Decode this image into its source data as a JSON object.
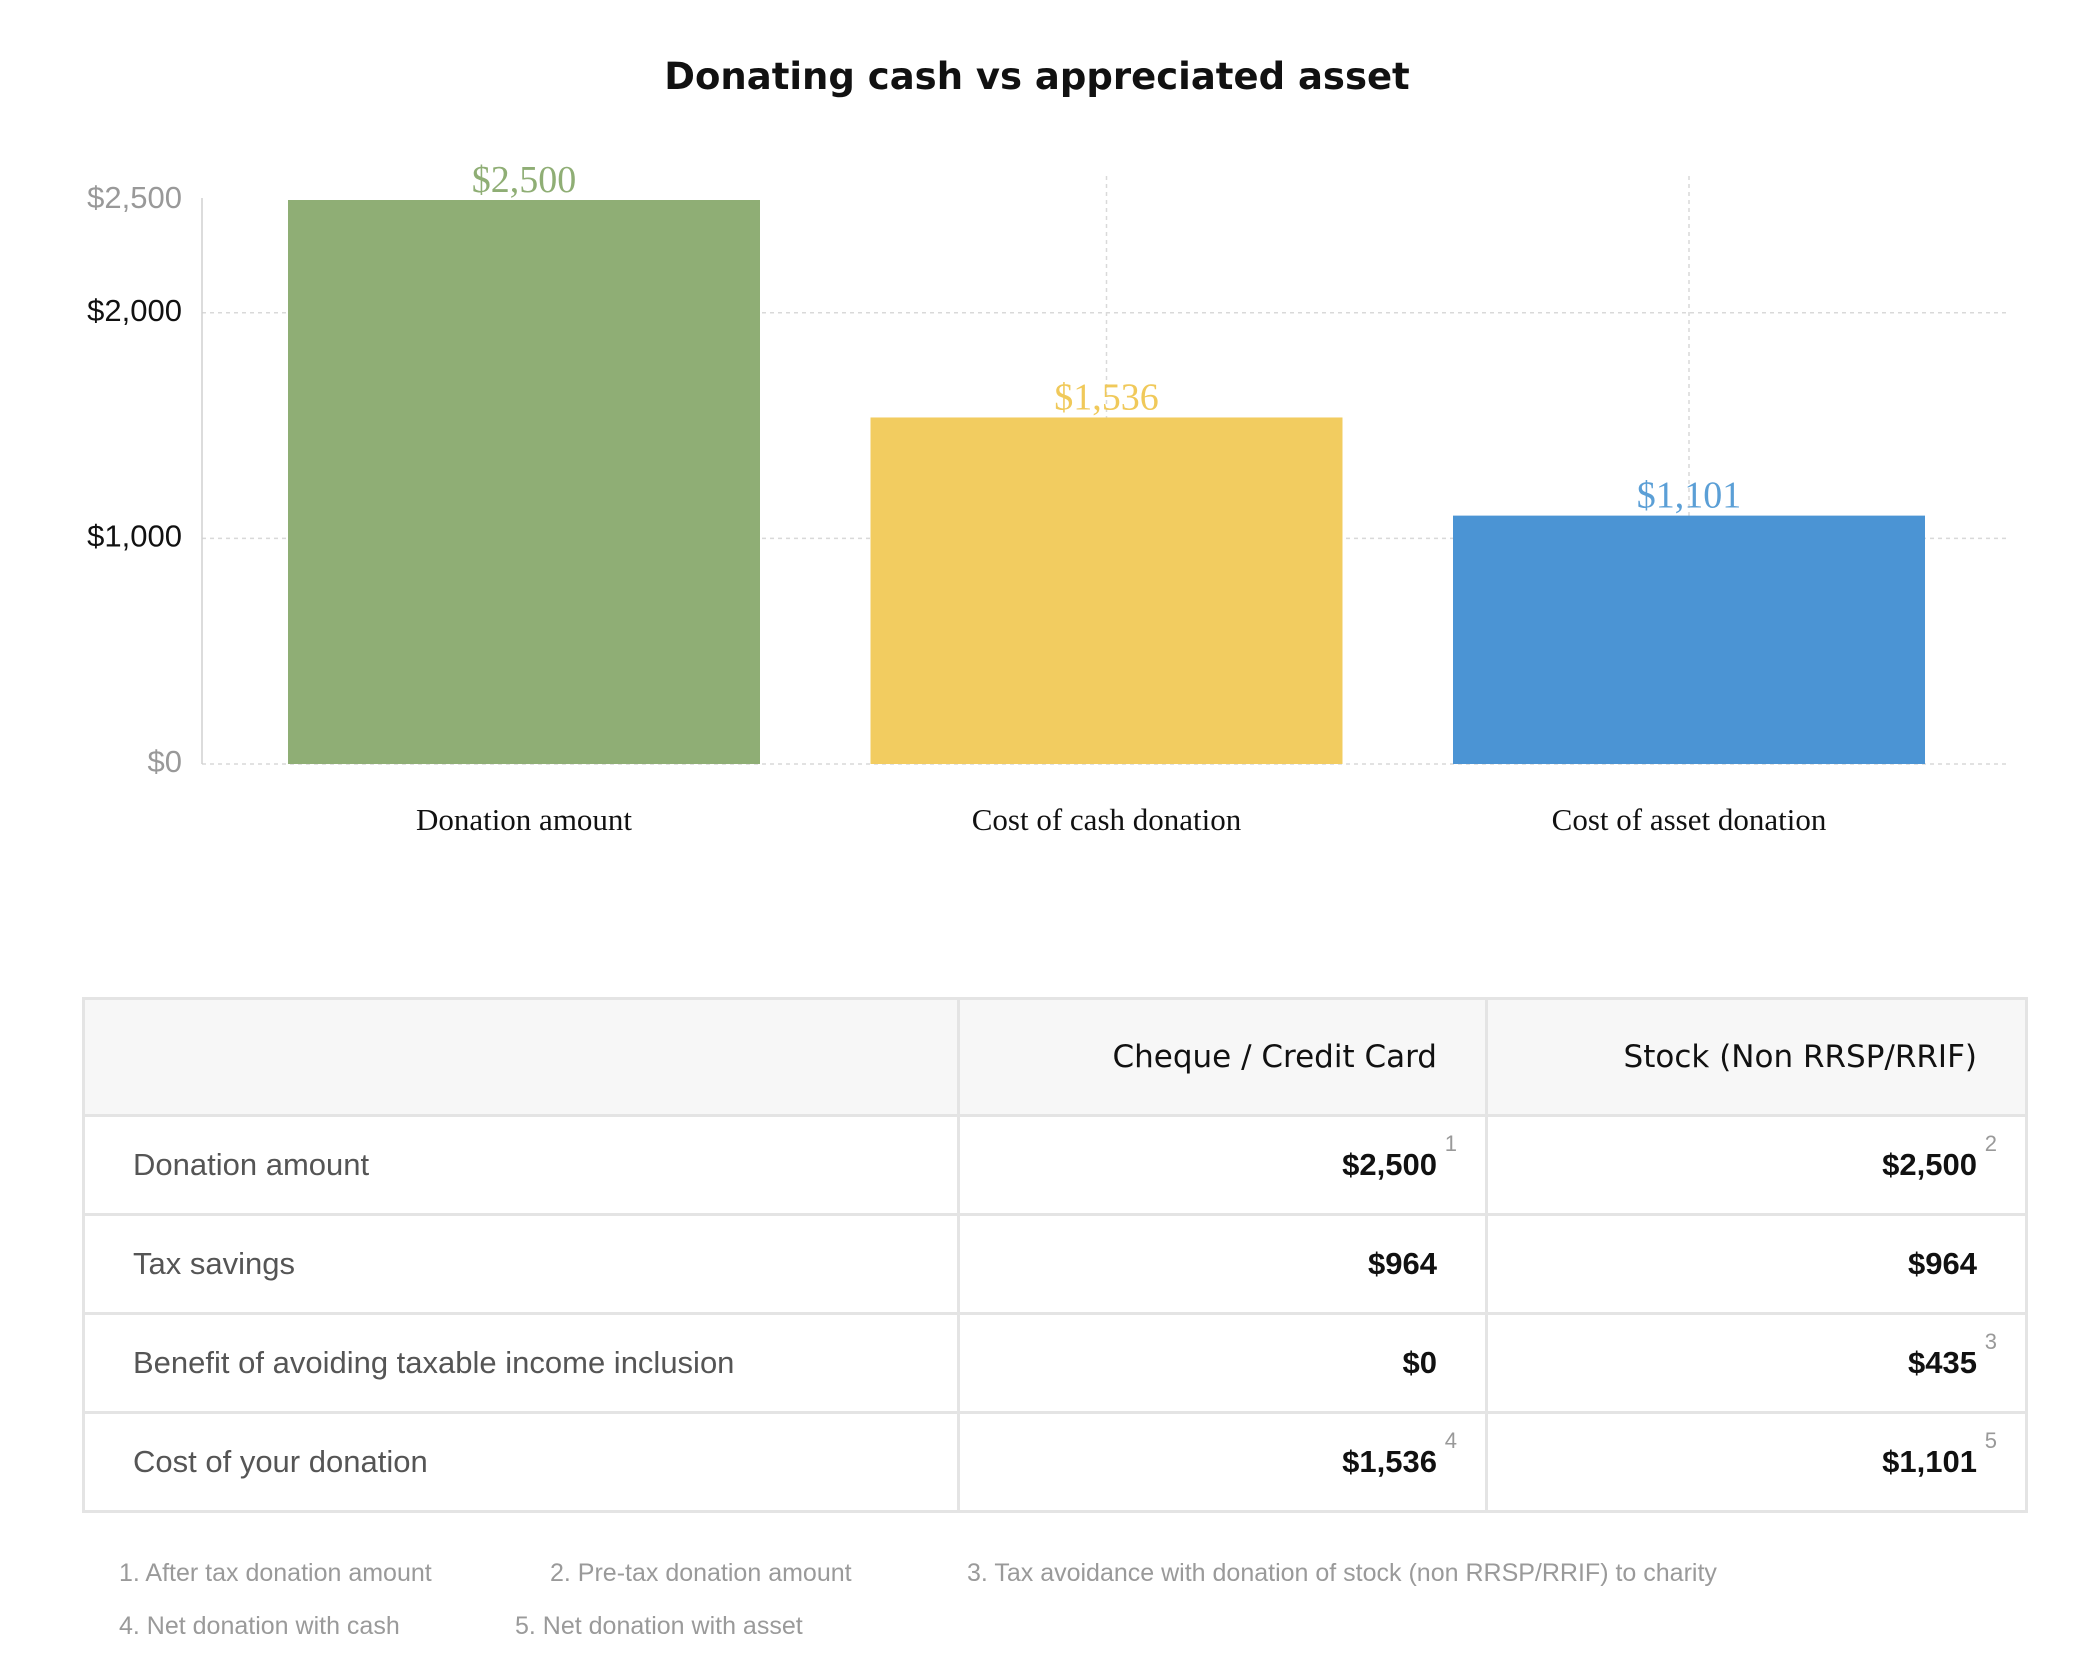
{
  "chart_data": {
    "type": "bar",
    "title": "Donating cash vs appreciated asset",
    "categories": [
      "Donation amount",
      "Cost of cash donation",
      "Cost of asset donation"
    ],
    "values": [
      2500,
      1536,
      1101
    ],
    "value_labels": [
      "$2,500",
      "$1,536",
      "$1,101"
    ],
    "colors": [
      "#8fae75",
      "#f2cc60",
      "#4b94d4"
    ],
    "label_colors": [
      "#8fae75",
      "#f0c95a",
      "#5b9fd6"
    ],
    "yticks": [
      {
        "value": 0,
        "label": "$0",
        "color": "#999999"
      },
      {
        "value": 1000,
        "label": "$1,000",
        "color": "#111111"
      },
      {
        "value": 2000,
        "label": "$2,000",
        "color": "#111111"
      },
      {
        "value": 2500,
        "label": "$2,500",
        "color": "#999999"
      }
    ],
    "ylim": [
      0,
      2500
    ],
    "xlabel": "",
    "ylabel": "",
    "grid": true
  },
  "table": {
    "headers": [
      "",
      "Cheque / Credit Card",
      "Stock (Non RRSP/RRIF)"
    ],
    "rows": [
      {
        "label": "Donation amount",
        "cash": "$2,500",
        "cash_fn": "1",
        "stock": "$2,500",
        "stock_fn": "2"
      },
      {
        "label": "Tax savings",
        "cash": "$964",
        "cash_fn": "",
        "stock": "$964",
        "stock_fn": ""
      },
      {
        "label": "Benefit of avoiding taxable income inclusion",
        "cash": "$0",
        "cash_fn": "",
        "stock": "$435",
        "stock_fn": "3"
      },
      {
        "label": "Cost of your donation",
        "cash": "$1,536",
        "cash_fn": "4",
        "stock": "$1,101",
        "stock_fn": "5"
      }
    ]
  },
  "footnotes": [
    "1. After tax donation amount",
    "2. Pre-tax donation amount",
    "3. Tax avoidance with donation of stock (non RRSP/RRIF) to charity",
    "4. Net donation with cash",
    "5. Net donation with asset"
  ]
}
